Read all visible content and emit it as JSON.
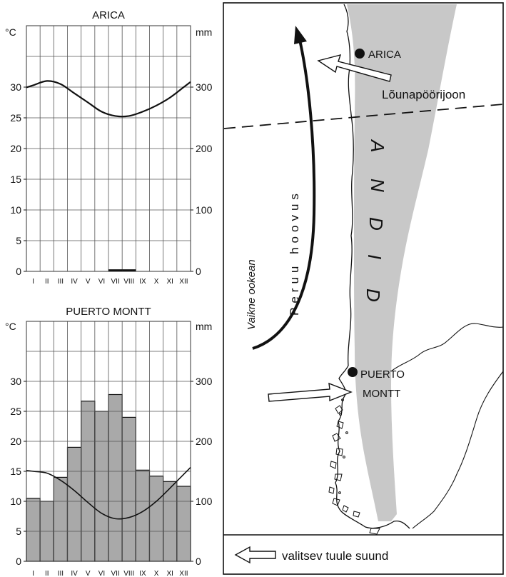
{
  "chart_data": [
    {
      "type": "line",
      "title": "ARICA",
      "ylabel_left": "°C",
      "ylabel_right": "mm",
      "categories": [
        "I",
        "II",
        "III",
        "IV",
        "V",
        "VI",
        "VII",
        "VIII",
        "IX",
        "X",
        "XI",
        "XII"
      ],
      "ylim": [
        0,
        35
      ],
      "y2lim": [
        0,
        350
      ],
      "yticks": [
        "0",
        "5",
        "10",
        "15",
        "20",
        "25",
        "30"
      ],
      "y2ticks": [
        "0",
        "100",
        "200",
        "300"
      ],
      "series": [
        {
          "axis": "temperature",
          "values": [
            30.3,
            31.0,
            30.5,
            29.0,
            27.5,
            26.0,
            25.3,
            25.3,
            26.0,
            27.0,
            28.3,
            30.0
          ]
        },
        {
          "axis": "precipitation",
          "values": [
            0,
            0,
            0,
            0,
            0,
            0,
            1,
            1,
            0,
            0,
            0,
            0
          ]
        }
      ]
    },
    {
      "type": "bar",
      "title": "PUERTO MONTT",
      "ylabel_left": "°C",
      "ylabel_right": "mm",
      "categories": [
        "I",
        "II",
        "III",
        "IV",
        "V",
        "VI",
        "VII",
        "VIII",
        "IX",
        "X",
        "XI",
        "XII"
      ],
      "ylim": [
        0,
        35
      ],
      "y2lim": [
        0,
        350
      ],
      "yticks": [
        "0",
        "5",
        "10",
        "15",
        "20",
        "25",
        "30"
      ],
      "y2ticks": [
        "0",
        "100",
        "200",
        "300"
      ],
      "series": [
        {
          "axis": "precipitation",
          "values": [
            105,
            100,
            140,
            190,
            267,
            250,
            278,
            240,
            152,
            142,
            133,
            125
          ]
        },
        {
          "axis": "temperature",
          "values": [
            15.0,
            14.7,
            13.5,
            11.8,
            9.8,
            8.0,
            7.1,
            7.3,
            8.3,
            10.0,
            12.2,
            14.5
          ]
        }
      ]
    }
  ],
  "map": {
    "labels": {
      "arica": "ARICA",
      "tropic": "Lõunapöörijoon",
      "andes": [
        "A",
        "N",
        "D",
        "I",
        "D"
      ],
      "current": "Peruu hoovus",
      "ocean": "Vaikne ookean",
      "puerto_line1": "PUERTO",
      "puerto_line2": "MONTT"
    },
    "legend": "valitsev tuule suund"
  }
}
